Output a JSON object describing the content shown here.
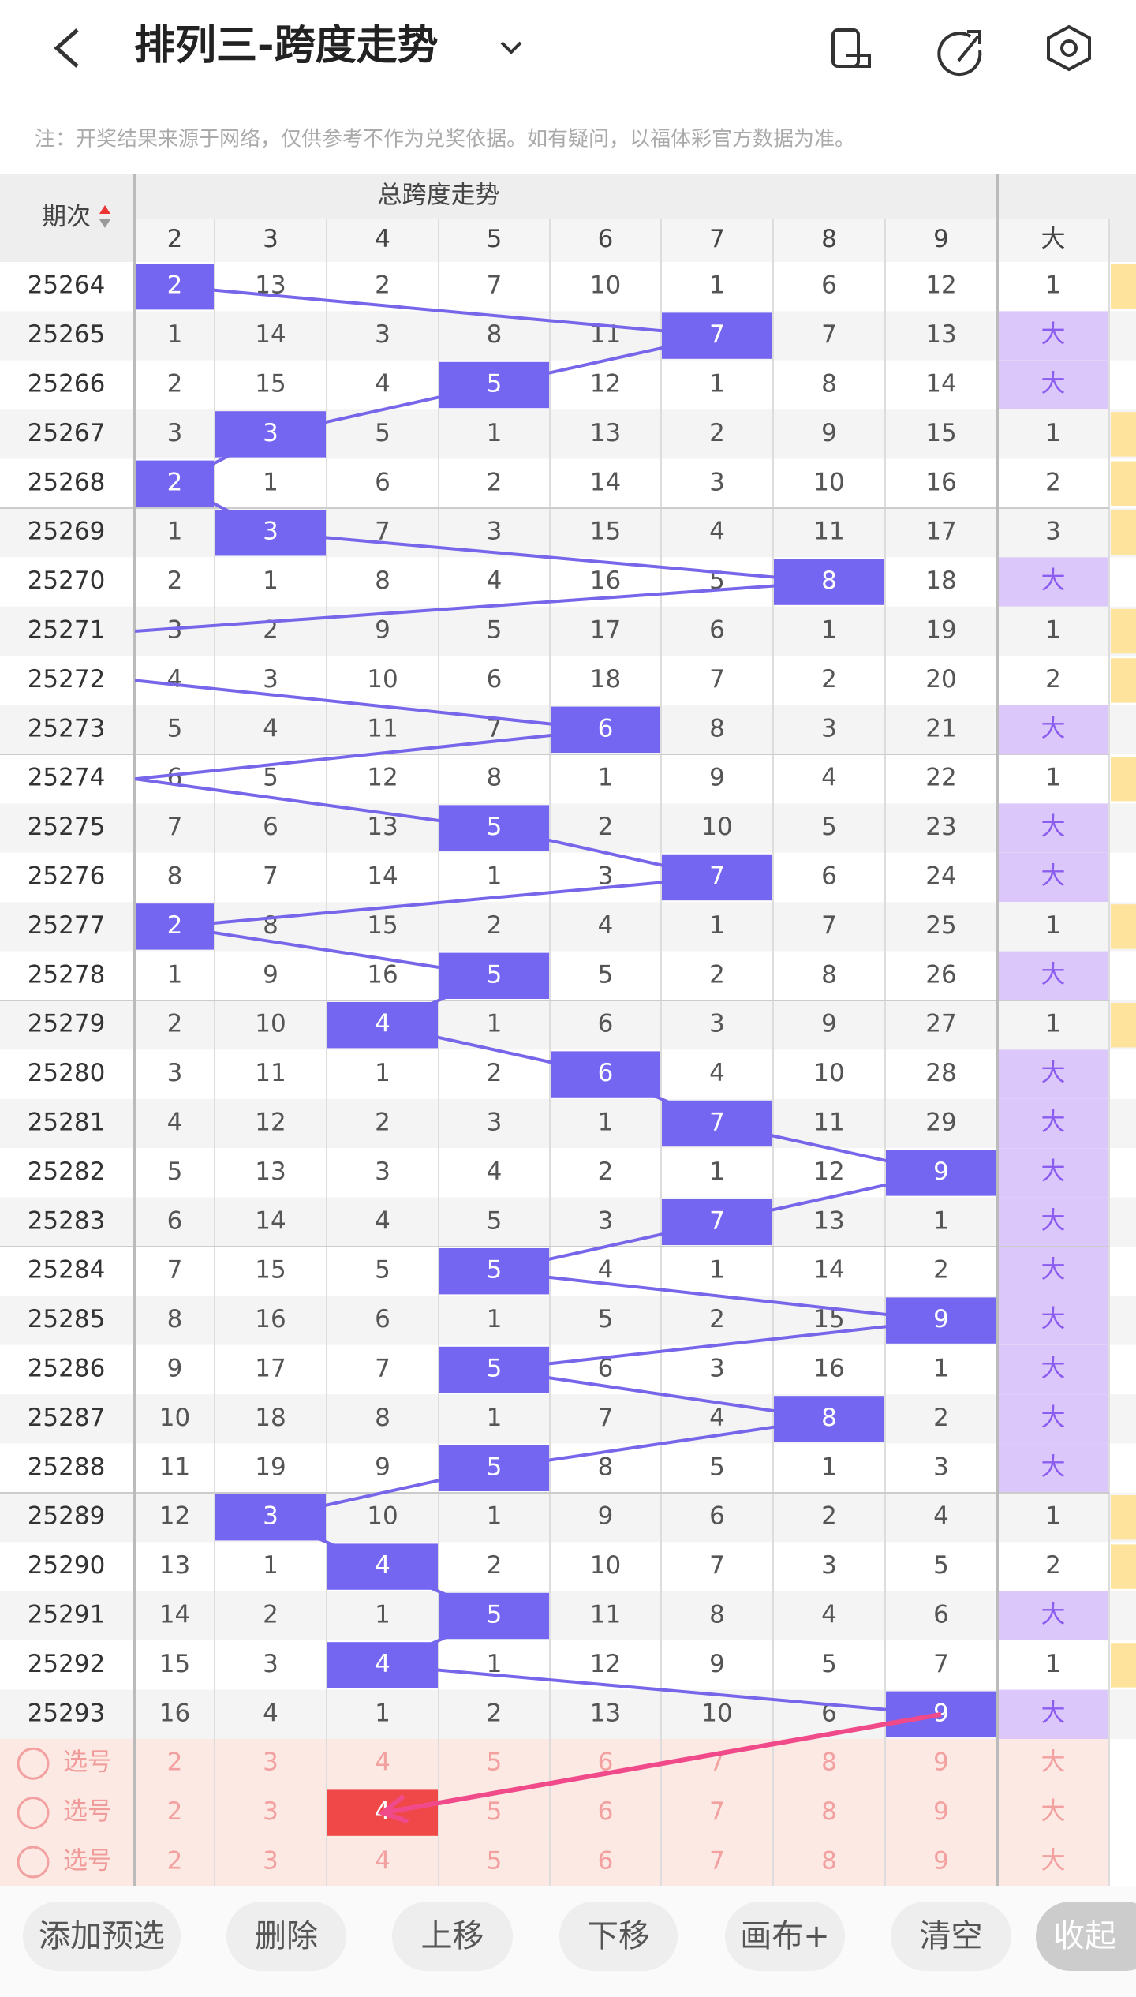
{
  "header": {
    "title": "排列三-跨度走势"
  },
  "note": "注：开奖结果来源于网络，仅供参考不作为兑奖依据。如有疑问，以福体彩官方数据为准。",
  "table": {
    "period_header": "期次",
    "group_header": "总跨度走势",
    "columns": [
      2,
      3,
      4,
      5,
      6,
      7,
      8,
      9
    ],
    "extra_column": "大",
    "rows": [
      {
        "period": 25264,
        "cells": [
          2,
          13,
          2,
          7,
          10,
          1,
          6,
          12
        ],
        "hit": 0,
        "extra": 1
      },
      {
        "period": 25265,
        "cells": [
          1,
          14,
          3,
          8,
          11,
          7,
          7,
          13
        ],
        "hit": 5,
        "extra": "大"
      },
      {
        "period": 25266,
        "cells": [
          2,
          15,
          4,
          5,
          12,
          1,
          8,
          14
        ],
        "hit": 3,
        "extra": "大"
      },
      {
        "period": 25267,
        "cells": [
          3,
          3,
          5,
          1,
          13,
          2,
          9,
          15
        ],
        "hit": 1,
        "extra": 1
      },
      {
        "period": 25268,
        "cells": [
          2,
          1,
          6,
          2,
          14,
          3,
          10,
          16
        ],
        "hit": 0,
        "extra": 2
      },
      {
        "period": 25269,
        "cells": [
          1,
          3,
          7,
          3,
          15,
          4,
          11,
          17
        ],
        "hit": 1,
        "extra": 3
      },
      {
        "period": 25270,
        "cells": [
          2,
          1,
          8,
          4,
          16,
          5,
          8,
          18
        ],
        "hit": 6,
        "extra": "大"
      },
      {
        "period": 25271,
        "cells": [
          3,
          2,
          9,
          5,
          17,
          6,
          1,
          19
        ],
        "hit": null,
        "extra": 1
      },
      {
        "period": 25272,
        "cells": [
          4,
          3,
          10,
          6,
          18,
          7,
          2,
          20
        ],
        "hit": null,
        "extra": 2
      },
      {
        "period": 25273,
        "cells": [
          5,
          4,
          11,
          7,
          6,
          8,
          3,
          21
        ],
        "hit": 4,
        "extra": "大"
      },
      {
        "period": 25274,
        "cells": [
          6,
          5,
          12,
          8,
          1,
          9,
          4,
          22
        ],
        "hit": null,
        "extra": 1
      },
      {
        "period": 25275,
        "cells": [
          7,
          6,
          13,
          5,
          2,
          10,
          5,
          23
        ],
        "hit": 3,
        "extra": "大"
      },
      {
        "period": 25276,
        "cells": [
          8,
          7,
          14,
          1,
          3,
          7,
          6,
          24
        ],
        "hit": 5,
        "extra": "大"
      },
      {
        "period": 25277,
        "cells": [
          2,
          8,
          15,
          2,
          4,
          1,
          7,
          25
        ],
        "hit": 0,
        "extra": 1
      },
      {
        "period": 25278,
        "cells": [
          1,
          9,
          16,
          5,
          5,
          2,
          8,
          26
        ],
        "hit": 3,
        "extra": "大"
      },
      {
        "period": 25279,
        "cells": [
          2,
          10,
          4,
          1,
          6,
          3,
          9,
          27
        ],
        "hit": 2,
        "extra": 1
      },
      {
        "period": 25280,
        "cells": [
          3,
          11,
          1,
          2,
          6,
          4,
          10,
          28
        ],
        "hit": 4,
        "extra": "大"
      },
      {
        "period": 25281,
        "cells": [
          4,
          12,
          2,
          3,
          1,
          7,
          11,
          29
        ],
        "hit": 5,
        "extra": "大"
      },
      {
        "period": 25282,
        "cells": [
          5,
          13,
          3,
          4,
          2,
          1,
          12,
          9
        ],
        "hit": 7,
        "extra": "大"
      },
      {
        "period": 25283,
        "cells": [
          6,
          14,
          4,
          5,
          3,
          7,
          13,
          1
        ],
        "hit": 5,
        "extra": "大"
      },
      {
        "period": 25284,
        "cells": [
          7,
          15,
          5,
          5,
          4,
          1,
          14,
          2
        ],
        "hit": 3,
        "extra": "大"
      },
      {
        "period": 25285,
        "cells": [
          8,
          16,
          6,
          1,
          5,
          2,
          15,
          9
        ],
        "hit": 7,
        "extra": "大"
      },
      {
        "period": 25286,
        "cells": [
          9,
          17,
          7,
          5,
          6,
          3,
          16,
          1
        ],
        "hit": 3,
        "extra": "大"
      },
      {
        "period": 25287,
        "cells": [
          10,
          18,
          8,
          1,
          7,
          4,
          8,
          2
        ],
        "hit": 6,
        "extra": "大"
      },
      {
        "period": 25288,
        "cells": [
          11,
          19,
          9,
          5,
          8,
          5,
          1,
          3
        ],
        "hit": 3,
        "extra": "大"
      },
      {
        "period": 25289,
        "cells": [
          12,
          3,
          10,
          1,
          9,
          6,
          2,
          4
        ],
        "hit": 1,
        "extra": 1
      },
      {
        "period": 25290,
        "cells": [
          13,
          1,
          4,
          2,
          10,
          7,
          3,
          5
        ],
        "hit": 2,
        "extra": 2
      },
      {
        "period": 25291,
        "cells": [
          14,
          2,
          1,
          5,
          11,
          8,
          4,
          6
        ],
        "hit": 3,
        "extra": "大"
      },
      {
        "period": 25292,
        "cells": [
          15,
          3,
          4,
          1,
          12,
          9,
          5,
          7
        ],
        "hit": 2,
        "extra": 1
      },
      {
        "period": 25293,
        "cells": [
          16,
          4,
          1,
          2,
          13,
          10,
          6,
          9
        ],
        "hit": 7,
        "extra": "大"
      }
    ],
    "pick_rows": [
      {
        "label": "选号",
        "cells": [
          2,
          3,
          4,
          5,
          6,
          7,
          8,
          9
        ],
        "extra": "大",
        "selected": null
      },
      {
        "label": "选号",
        "cells": [
          2,
          3,
          4,
          5,
          6,
          7,
          8,
          9
        ],
        "extra": "大",
        "selected": 2
      },
      {
        "label": "选号",
        "cells": [
          2,
          3,
          4,
          5,
          6,
          7,
          8,
          9
        ],
        "extra": "大",
        "selected": null
      }
    ]
  },
  "buttons": [
    "添加预选",
    "删除",
    "上移",
    "下移",
    "画布+",
    "清空",
    "收起"
  ]
}
